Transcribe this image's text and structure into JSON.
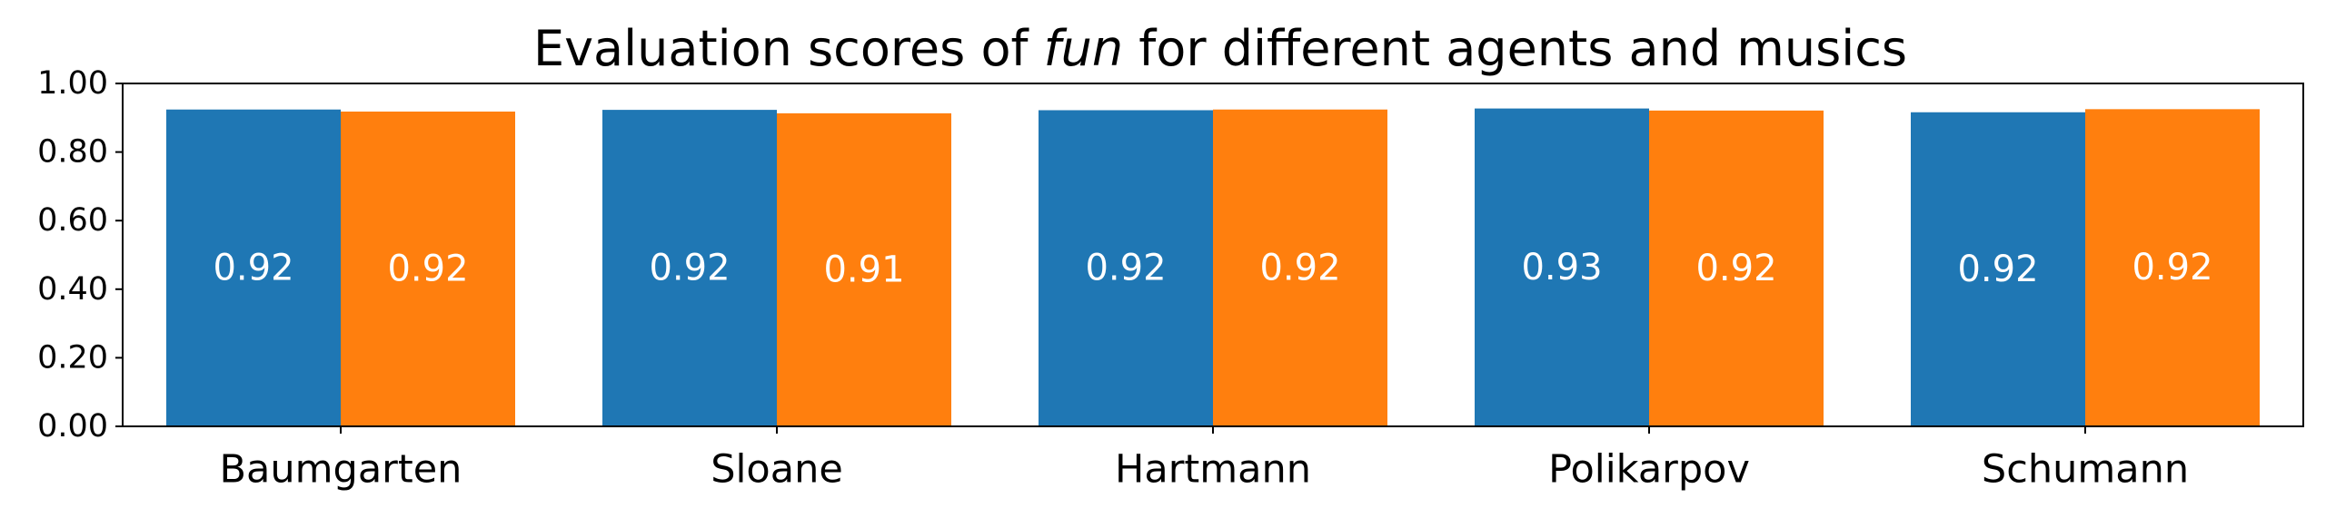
{
  "chart_data": {
    "type": "bar",
    "title_prefix": "Evaluation scores of ",
    "title_emphasis": "fun",
    "title_suffix": " for different agents and musics",
    "categories": [
      "Baumgarten",
      "Sloane",
      "Hartmann",
      "Polikarpov",
      "Schumann"
    ],
    "series": [
      {
        "values": [
          0.924,
          0.923,
          0.922,
          0.927,
          0.916
        ],
        "labels": [
          "0.92",
          "0.92",
          "0.92",
          "0.93",
          "0.92"
        ],
        "color": "#1f77b4"
      },
      {
        "values": [
          0.918,
          0.913,
          0.924,
          0.921,
          0.925
        ],
        "labels": [
          "0.92",
          "0.91",
          "0.92",
          "0.92",
          "0.92"
        ],
        "color": "#ff7f0e"
      }
    ],
    "ylim": [
      0,
      1
    ],
    "yticks": [
      "0.00",
      "0.20",
      "0.40",
      "0.60",
      "0.80",
      "1.00"
    ],
    "grid": false,
    "legend": false,
    "xlabel": "",
    "ylabel": ""
  }
}
